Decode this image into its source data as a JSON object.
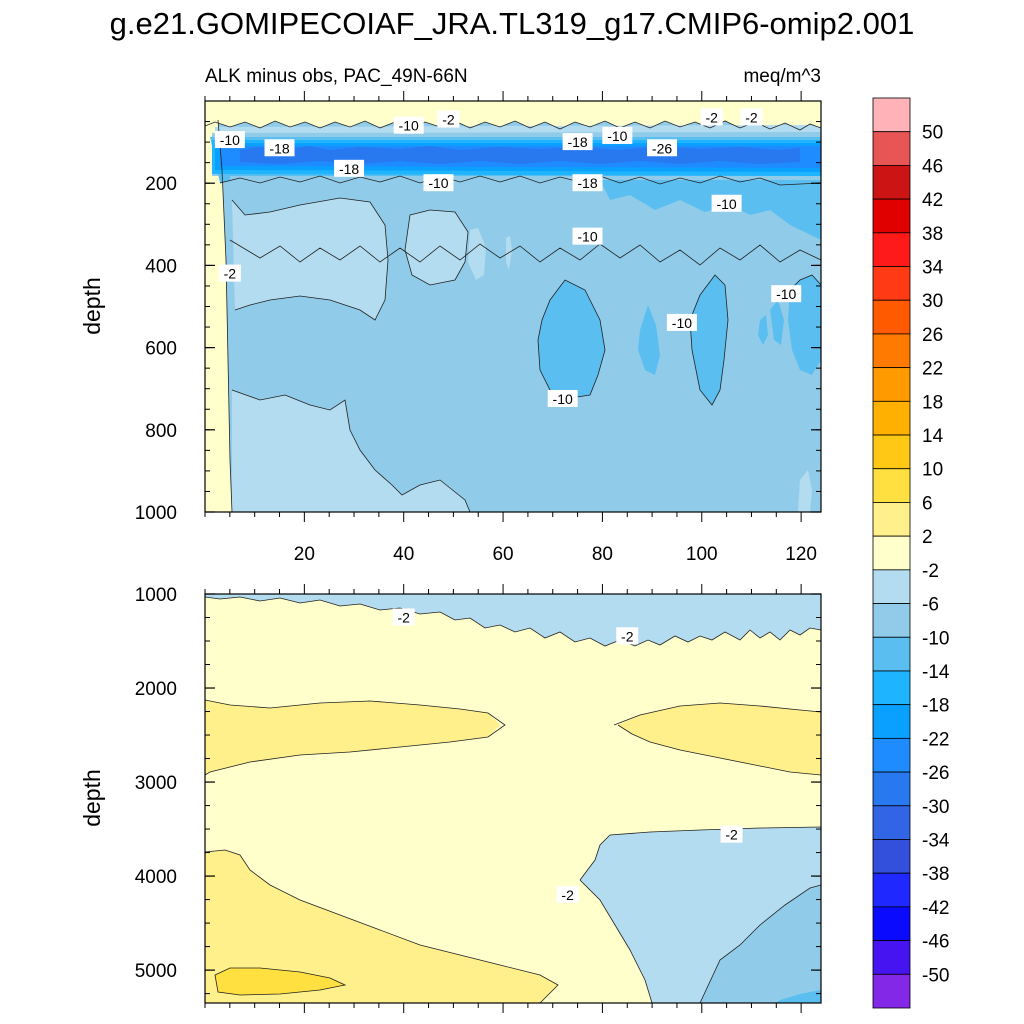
{
  "title": "g.e21.GOMIPECOIAF_JRA.TL319_g17.CMIP6-omip2.001",
  "chart_data": {
    "type": "contour",
    "left_subtitle": "ALK minus obs, PAC_49N-66N",
    "right_subtitle": "meq/m^3",
    "ylabel": "depth",
    "xlim": [
      0,
      124
    ],
    "x_ticks": [
      20,
      40,
      60,
      80,
      100,
      120
    ],
    "colorbar": {
      "levels": [
        "50",
        "46",
        "42",
        "38",
        "34",
        "30",
        "26",
        "22",
        "18",
        "14",
        "10",
        "6",
        "2",
        "-2",
        "-6",
        "-10",
        "-14",
        "-18",
        "-22",
        "-26",
        "-30",
        "-34",
        "-38",
        "-42",
        "-46",
        "-50"
      ],
      "colors": {
        "gt_50": "#FFB3B8",
        "46_50": "#E85555",
        "42_46": "#CC1414",
        "38_42": "#E00000",
        "34_38": "#FF1A1A",
        "30_34": "#FF3A14",
        "26_30": "#FF5A00",
        "22_26": "#FF7A00",
        "18_22": "#FF9A00",
        "14_18": "#FFB000",
        "10_14": "#FFC815",
        "6_10": "#FFE040",
        "2_6": "#FFF08C",
        "m2_2": "#FFFFCC",
        "m6_m2": "#B4DCF0",
        "m10_m6": "#90CCEA",
        "m14_m10": "#5BBEF0",
        "m18_m14": "#1EB4FF",
        "m22_m18": "#0AA0FF",
        "m26_m22": "#1E8CFF",
        "m30_m26": "#2878F0",
        "m34_m30": "#3264E6",
        "m38_m34": "#3250DC",
        "m42_m38": "#1E28FF",
        "m46_m42": "#0A0AFF",
        "m50_m46": "#4614F0",
        "lt_m50": "#8228E6"
      }
    },
    "panels": [
      {
        "name": "upper",
        "ylim": [
          0,
          1000
        ],
        "y_ticks": [
          200,
          400,
          600,
          800,
          1000
        ],
        "contour_labels": [
          {
            "text": "-10",
            "x": 5,
            "y": 95
          },
          {
            "text": "-18",
            "x": 15,
            "y": 115
          },
          {
            "text": "-10",
            "x": 41,
            "y": 60
          },
          {
            "text": "-2",
            "x": 49,
            "y": 45
          },
          {
            "text": "-18",
            "x": 29,
            "y": 165
          },
          {
            "text": "-10",
            "x": 47,
            "y": 200
          },
          {
            "text": "-18",
            "x": 75,
            "y": 100
          },
          {
            "text": "-10",
            "x": 83,
            "y": 85
          },
          {
            "text": "-26",
            "x": 92,
            "y": 115
          },
          {
            "text": "-2",
            "x": 102,
            "y": 40
          },
          {
            "text": "-2",
            "x": 110,
            "y": 40
          },
          {
            "text": "-18",
            "x": 77,
            "y": 200
          },
          {
            "text": "-10",
            "x": 105,
            "y": 250
          },
          {
            "text": "-10",
            "x": 77,
            "y": 330
          },
          {
            "text": "-2",
            "x": 5,
            "y": 420
          },
          {
            "text": "-10",
            "x": 96,
            "y": 540
          },
          {
            "text": "-10",
            "x": 117,
            "y": 470
          },
          {
            "text": "-10",
            "x": 72,
            "y": 725
          }
        ]
      },
      {
        "name": "lower",
        "ylim": [
          1000,
          5350
        ],
        "y_ticks": [
          1000,
          2000,
          3000,
          4000,
          5000
        ],
        "contour_labels": [
          {
            "text": "-2",
            "x": 40,
            "y": 1250
          },
          {
            "text": "-2",
            "x": 85,
            "y": 1450
          },
          {
            "text": "-2",
            "x": 106,
            "y": 3560
          },
          {
            "text": "-2",
            "x": 73,
            "y": 4200
          }
        ]
      }
    ]
  }
}
